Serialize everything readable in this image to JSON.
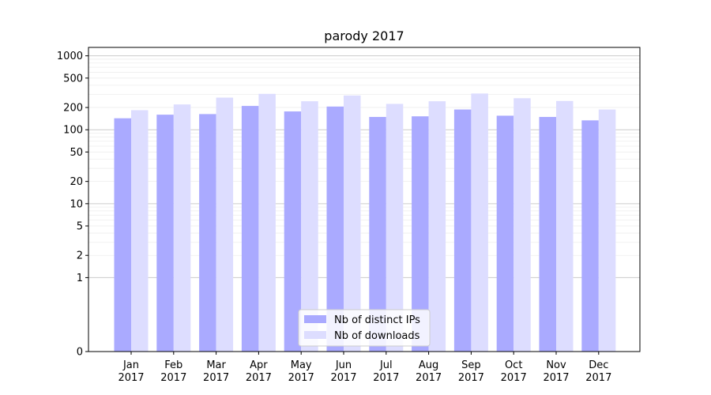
{
  "chart_data": {
    "type": "bar",
    "title": "parody 2017",
    "xlabel": "",
    "ylabel": "",
    "yscale": "symlog",
    "ylim": [
      0,
      1300
    ],
    "grid": {
      "major": true,
      "minor": true
    },
    "legend_position": "bottom-center",
    "categories": [
      [
        "Jan",
        "2017"
      ],
      [
        "Feb",
        "2017"
      ],
      [
        "Mar",
        "2017"
      ],
      [
        "Apr",
        "2017"
      ],
      [
        "May",
        "2017"
      ],
      [
        "Jun",
        "2017"
      ],
      [
        "Jul",
        "2017"
      ],
      [
        "Aug",
        "2017"
      ],
      [
        "Sep",
        "2017"
      ],
      [
        "Oct",
        "2017"
      ],
      [
        "Nov",
        "2017"
      ],
      [
        "Dec",
        "2017"
      ]
    ],
    "yticks": [
      {
        "value": 0,
        "label": "0"
      },
      {
        "value": 1,
        "label": "1"
      },
      {
        "value": 2,
        "label": "2"
      },
      {
        "value": 5,
        "label": "5"
      },
      {
        "value": 10,
        "label": "10"
      },
      {
        "value": 20,
        "label": "20"
      },
      {
        "value": 50,
        "label": "50"
      },
      {
        "value": 100,
        "label": "100"
      },
      {
        "value": 200,
        "label": "200"
      },
      {
        "value": 500,
        "label": "500"
      },
      {
        "value": 1000,
        "label": "1000"
      }
    ],
    "series": [
      {
        "name": "Nb of distinct IPs",
        "color": "#aaaaff",
        "values": [
          143,
          160,
          163,
          210,
          177,
          206,
          149,
          152,
          188,
          155,
          149,
          134
        ]
      },
      {
        "name": "Nb of downloads",
        "color": "#ddddff",
        "values": [
          184,
          220,
          272,
          306,
          243,
          291,
          224,
          243,
          309,
          267,
          245,
          188
        ]
      }
    ]
  }
}
